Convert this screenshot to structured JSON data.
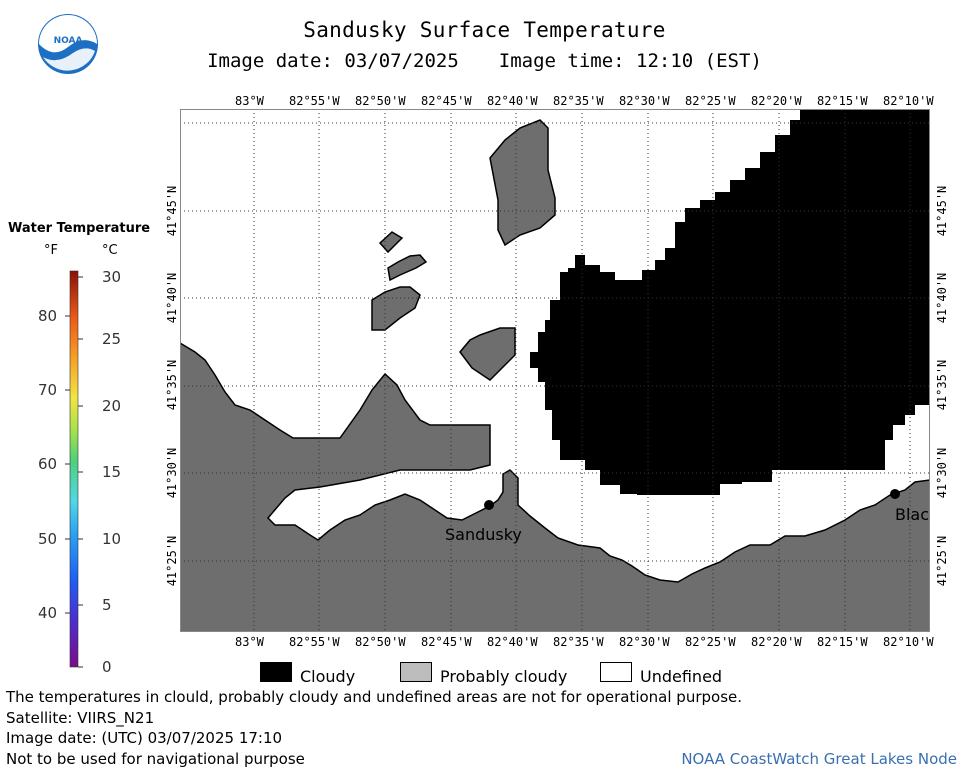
{
  "header": {
    "title": "Sandusky Surface Temperature",
    "image_date": "Image date: 03/07/2025",
    "image_time": "Image time: 12:10 (EST)",
    "logo_text": "NOAA"
  },
  "map": {
    "lon_labels": [
      "83°W",
      "82°55'W",
      "82°50'W",
      "82°45'W",
      "82°40'W",
      "82°35'W",
      "82°30'W",
      "82°25'W",
      "82°20'W",
      "82°15'W",
      "82°10'W"
    ],
    "lat_labels": [
      "41°45'N",
      "41°40'N",
      "41°35'N",
      "41°30'N",
      "41°25'N"
    ],
    "places": [
      "Sandusky",
      "Blac"
    ],
    "colors": {
      "land": "#6e6e6e",
      "cloud": "#000000",
      "water": "#ffffff"
    }
  },
  "colorbar": {
    "title": "Water Temperature",
    "unit_f": "°F",
    "unit_c": "°C",
    "f_labels": [
      "80",
      "70",
      "60",
      "50",
      "40"
    ],
    "c_labels": [
      "30",
      "25",
      "20",
      "15",
      "10",
      "5",
      "0"
    ],
    "range_c": [
      0,
      30
    ]
  },
  "key": {
    "cloudy": "Cloudy",
    "probably_cloudy": "Probably cloudy",
    "undefined": "Undefined"
  },
  "footer": {
    "disclaimer": "The temperatures in clould, probably cloudy and undefined areas are not for operational purpose.",
    "satellite": "Satellite: VIIRS_N21",
    "utc_date": "Image date: (UTC) 03/07/2025  17:10",
    "nav_warning": "Not to be used for navigational purpose",
    "node": "NOAA CoastWatch Great Lakes Node"
  }
}
